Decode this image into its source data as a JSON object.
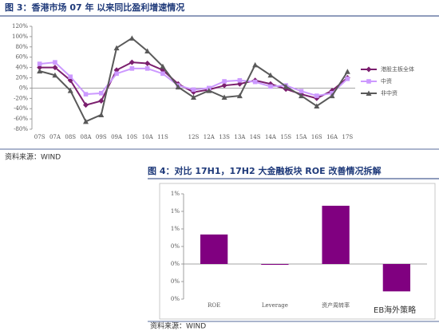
{
  "chart_data": [
    {
      "type": "line",
      "title": "图 3：香港市场 07 年 以来同比盈利增速情况",
      "categories": [
        "07S",
        "07A",
        "08S",
        "08A",
        "09S",
        "09A",
        "10S",
        "10A",
        "11S",
        null,
        "12S",
        "12A",
        "13S",
        "13A",
        "14S",
        "14A",
        "15S",
        "15A",
        "16S",
        "16A",
        "17S"
      ],
      "series": [
        {
          "name": "港股主板全体",
          "color": "#7b1f6e",
          "marker": "diamond",
          "values": [
            40,
            40,
            15,
            -33,
            -25,
            35,
            50,
            48,
            35,
            8,
            -8,
            -3,
            5,
            8,
            15,
            8,
            -2,
            -12,
            -20,
            -5,
            20
          ]
        },
        {
          "name": "中资",
          "color": "#cc99ff",
          "marker": "square",
          "values": [
            47,
            50,
            22,
            -12,
            -10,
            28,
            38,
            38,
            28,
            5,
            -3,
            0,
            13,
            15,
            12,
            3,
            5,
            -6,
            -15,
            -10,
            18
          ]
        },
        {
          "name": "非中资",
          "color": "#595959",
          "marker": "triangle",
          "values": [
            33,
            25,
            -5,
            -65,
            -52,
            78,
            97,
            72,
            42,
            2,
            -18,
            -5,
            -18,
            -15,
            45,
            25,
            3,
            -15,
            -35,
            -15,
            32
          ]
        }
      ],
      "ylim": [
        -80,
        120
      ],
      "yticks": [
        {
          "value": -80,
          "label": "-80%"
        },
        {
          "value": -60,
          "label": "-60%"
        },
        {
          "value": -40,
          "label": "-40%"
        },
        {
          "value": -20,
          "label": "-20%"
        },
        {
          "value": 0,
          "label": "0%"
        },
        {
          "value": 20,
          "label": "20%"
        },
        {
          "value": 40,
          "label": "40%"
        },
        {
          "value": 60,
          "label": "60%"
        },
        {
          "value": 80,
          "label": "80%"
        },
        {
          "value": 100,
          "label": "100%"
        },
        {
          "value": 120,
          "label": "120%"
        }
      ],
      "grid": false,
      "legend": "right"
    },
    {
      "type": "bar",
      "title": "图 4：对比 17H1，17H2 大金融板块 ROE 改善情况拆解",
      "categories": [
        "ROE",
        "Leverage",
        "资产周转率",
        null
      ],
      "values": [
        0.42,
        -0.01,
        0.83,
        -0.39
      ],
      "color": "#800080",
      "ylim": [
        -0.5,
        1.0
      ],
      "yticks": [
        {
          "value": -0.5,
          "label": "0%"
        },
        {
          "value": -0.25,
          "label": "0%"
        },
        {
          "value": 0,
          "label": "0%"
        },
        {
          "value": 0.25,
          "label": "0%"
        },
        {
          "value": 0.5,
          "label": "1%"
        },
        {
          "value": 0.75,
          "label": "1%"
        },
        {
          "value": 1.0,
          "label": "1%"
        }
      ],
      "grid": false
    }
  ],
  "sources": [
    "资料来源：WIND",
    "资料来源：WIND"
  ],
  "watermark": "EB海外策略"
}
